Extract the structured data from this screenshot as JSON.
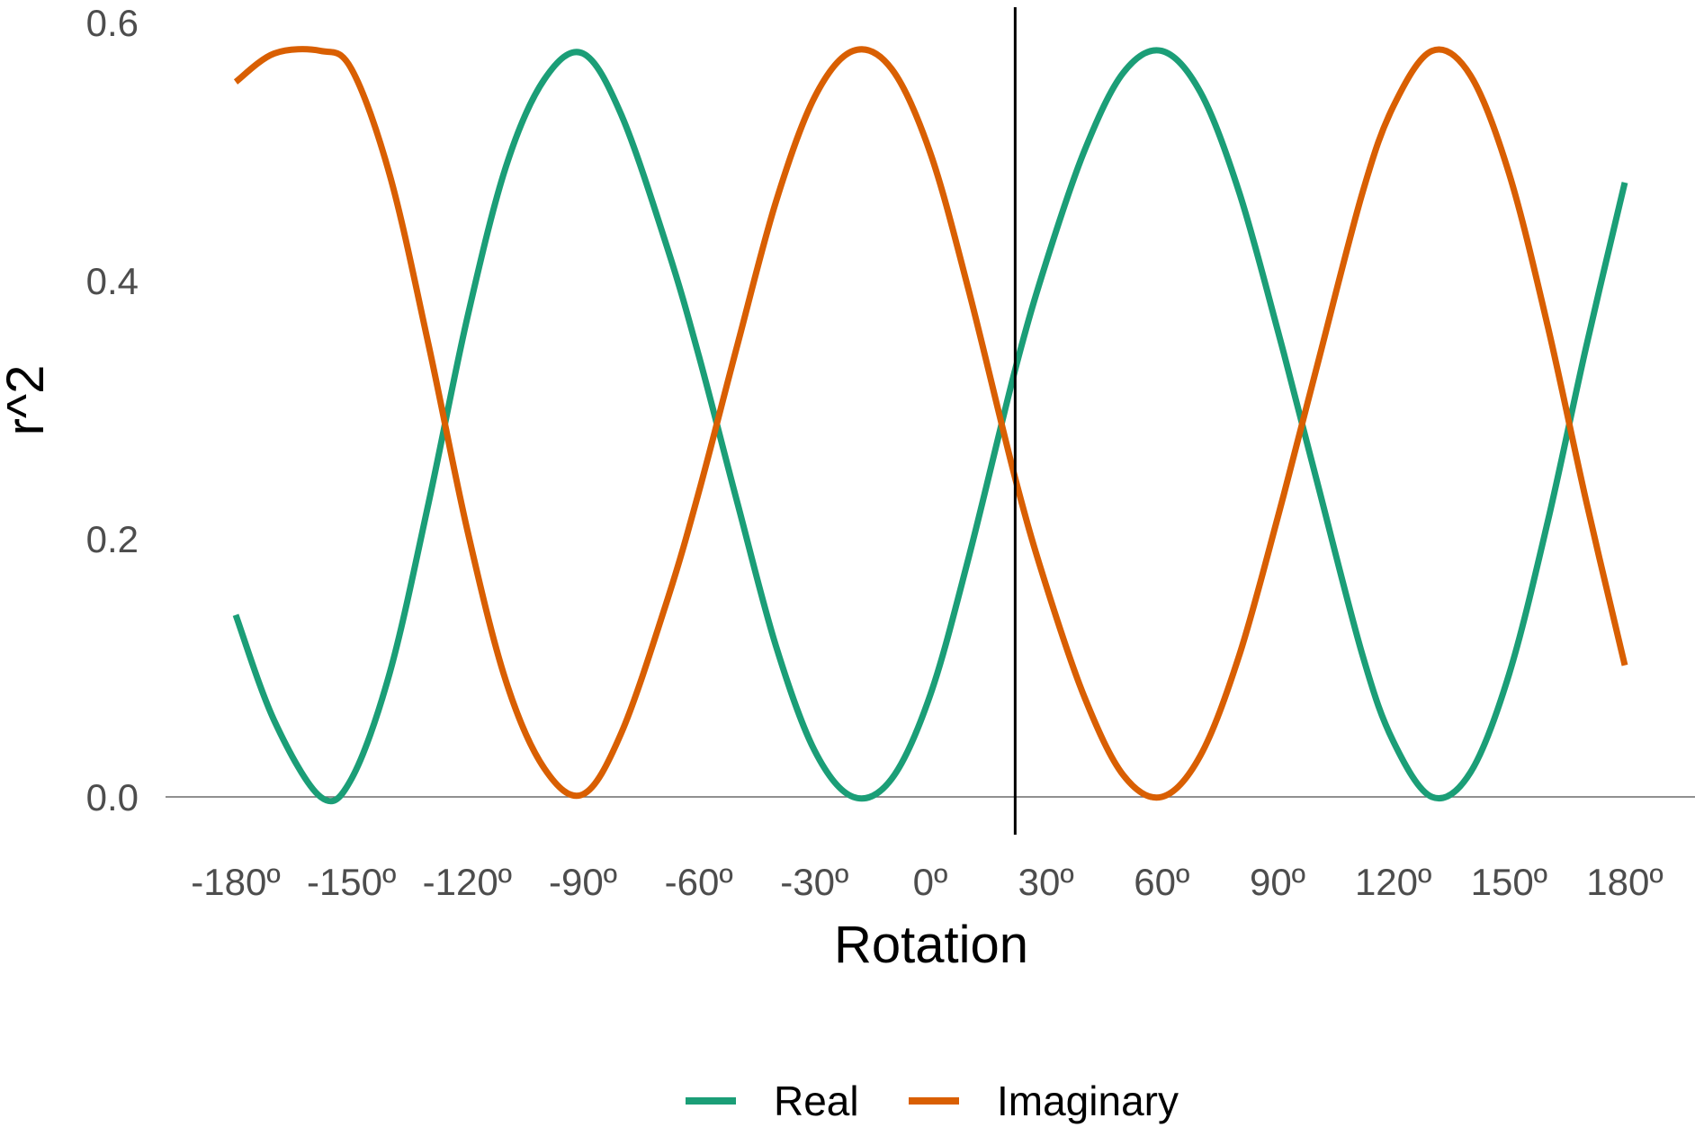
{
  "chart_data": {
    "type": "line",
    "xlabel": "Rotation",
    "ylabel": "r^2",
    "xlim": [
      -180,
      180
    ],
    "ylim": [
      0,
      0.6
    ],
    "x_ticks": [
      -180,
      -150,
      -120,
      -90,
      -60,
      -30,
      0,
      30,
      60,
      90,
      120,
      150,
      180
    ],
    "x_tick_labels": [
      "-180º",
      "-150º",
      "-120º",
      "-90º",
      "-60º",
      "-30º",
      "0º",
      "30º",
      "60º",
      "90º",
      "120º",
      "150º",
      "180º"
    ],
    "y_ticks": [
      0,
      0.2,
      0.4,
      0.6
    ],
    "y_tick_labels": [
      "0.0",
      "0.2",
      "0.4",
      "0.6"
    ],
    "vline_x": 22,
    "grid": false,
    "legend_position": "bottom",
    "series": [
      {
        "name": "Real",
        "color": "#1b9e77",
        "x": [
          -180,
          -170,
          -158,
          -150,
          -140,
          -130,
          -120,
          -110,
          -100,
          -90,
          -80,
          -68,
          -60,
          -50,
          -40,
          -30,
          -20,
          -10,
          0,
          10,
          22,
          30,
          40,
          50,
          60,
          70,
          80,
          90,
          100,
          112,
          120,
          130,
          140,
          150,
          160,
          170,
          180
        ],
        "y": [
          0.141,
          0.059,
          0.0,
          0.014,
          0.097,
          0.228,
          0.371,
          0.488,
          0.556,
          0.576,
          0.528,
          0.424,
          0.342,
          0.228,
          0.117,
          0.036,
          0.0,
          0.014,
          0.079,
          0.186,
          0.331,
          0.414,
          0.501,
          0.561,
          0.578,
          0.546,
          0.469,
          0.362,
          0.247,
          0.11,
          0.043,
          0.0,
          0.019,
          0.095,
          0.213,
          0.349,
          0.476
        ]
      },
      {
        "name": "Imaginary",
        "color": "#d95f02",
        "x": [
          -180,
          -170,
          -158,
          -150,
          -140,
          -130,
          -120,
          -110,
          -100,
          -90,
          -80,
          -68,
          -60,
          -50,
          -40,
          -30,
          -20,
          -10,
          0,
          10,
          22,
          30,
          40,
          50,
          60,
          70,
          80,
          90,
          100,
          112,
          120,
          130,
          140,
          150,
          160,
          170,
          180
        ],
        "y": [
          0.554,
          0.576,
          0.578,
          0.564,
          0.481,
          0.35,
          0.207,
          0.09,
          0.022,
          0.002,
          0.05,
          0.154,
          0.236,
          0.35,
          0.461,
          0.542,
          0.578,
          0.564,
          0.499,
          0.392,
          0.247,
          0.164,
          0.077,
          0.017,
          0.0,
          0.032,
          0.109,
          0.216,
          0.331,
          0.468,
          0.535,
          0.578,
          0.559,
          0.483,
          0.365,
          0.229,
          0.102
        ]
      }
    ]
  }
}
